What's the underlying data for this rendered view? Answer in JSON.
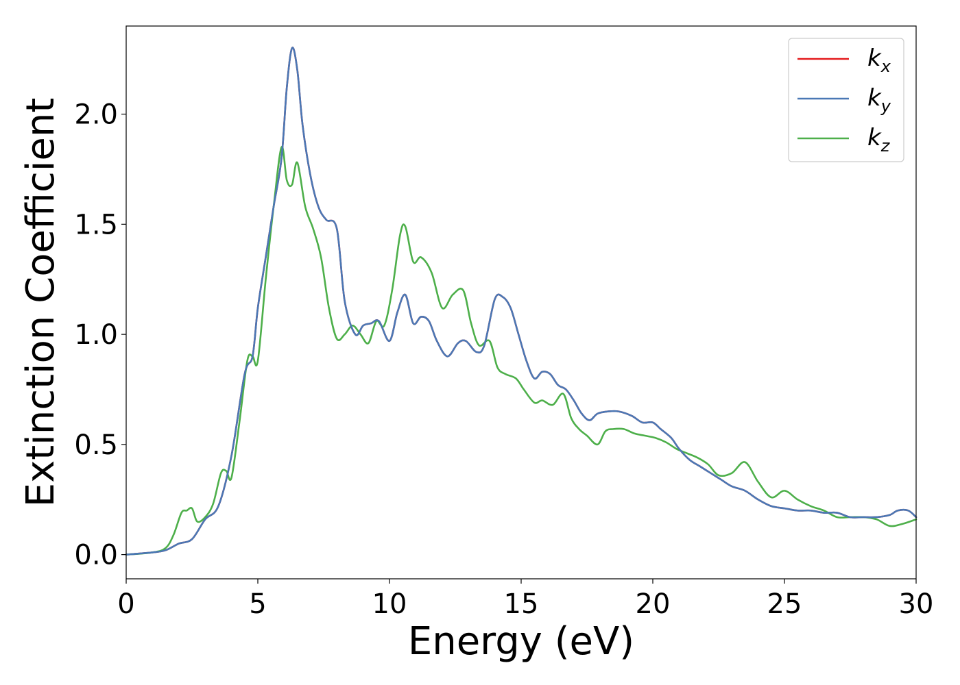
{
  "chart_data": {
    "type": "line",
    "xlabel": "Energy (eV)",
    "ylabel": "Extinction Coefficient",
    "xlim": [
      0,
      30
    ],
    "ylim": [
      -0.11,
      2.4
    ],
    "xticks": [
      0,
      5,
      10,
      15,
      20,
      25,
      30
    ],
    "yticks": [
      0.0,
      0.5,
      1.0,
      1.5,
      2.0
    ],
    "xtick_labels": [
      "0",
      "5",
      "10",
      "15",
      "20",
      "25",
      "30"
    ],
    "ytick_labels": [
      "0.0",
      "0.5",
      "1.0",
      "1.5",
      "2.0"
    ],
    "grid": false,
    "legend_position": "top-right",
    "series": [
      {
        "name": "k_x",
        "legend_base": "k",
        "legend_sub": "x",
        "color": "#e41a1c",
        "x": [
          0,
          1,
          1.5,
          2,
          2.5,
          3,
          3.5,
          4,
          4.5,
          4.8,
          5,
          5.3,
          5.6,
          5.9,
          6.1,
          6.3,
          6.5,
          6.7,
          7,
          7.3,
          7.6,
          8,
          8.3,
          8.7,
          9,
          9.3,
          9.6,
          10,
          10.3,
          10.6,
          10.9,
          11.2,
          11.5,
          11.8,
          12.2,
          12.6,
          12.9,
          13.3,
          13.6,
          14,
          14.3,
          14.6,
          14.9,
          15.2,
          15.5,
          15.8,
          16.1,
          16.4,
          16.7,
          17,
          17.3,
          17.6,
          17.9,
          18.3,
          18.7,
          19.2,
          19.6,
          20,
          20.3,
          20.7,
          21,
          21.4,
          21.8,
          22.2,
          22.6,
          23,
          23.5,
          24,
          24.5,
          25,
          25.5,
          26,
          26.5,
          27,
          27.5,
          28,
          28.5,
          29,
          29.3,
          29.7,
          30
        ],
        "values": [
          0.0,
          0.01,
          0.02,
          0.05,
          0.07,
          0.16,
          0.22,
          0.45,
          0.82,
          0.9,
          1.12,
          1.35,
          1.58,
          1.8,
          2.12,
          2.3,
          2.2,
          1.95,
          1.72,
          1.58,
          1.52,
          1.48,
          1.15,
          1.0,
          1.04,
          1.05,
          1.06,
          0.97,
          1.1,
          1.18,
          1.05,
          1.08,
          1.06,
          0.97,
          0.9,
          0.96,
          0.97,
          0.92,
          0.95,
          1.16,
          1.17,
          1.12,
          1.0,
          0.88,
          0.8,
          0.83,
          0.82,
          0.77,
          0.75,
          0.7,
          0.64,
          0.61,
          0.64,
          0.65,
          0.65,
          0.63,
          0.6,
          0.6,
          0.57,
          0.53,
          0.48,
          0.43,
          0.4,
          0.37,
          0.34,
          0.31,
          0.29,
          0.25,
          0.22,
          0.21,
          0.2,
          0.2,
          0.19,
          0.19,
          0.17,
          0.17,
          0.17,
          0.18,
          0.2,
          0.2,
          0.17
        ]
      },
      {
        "name": "k_y",
        "legend_base": "k",
        "legend_sub": "y",
        "color": "#4a78b5",
        "x": [
          0,
          1,
          1.5,
          2,
          2.5,
          3,
          3.5,
          4,
          4.5,
          4.8,
          5,
          5.3,
          5.6,
          5.9,
          6.1,
          6.3,
          6.5,
          6.7,
          7,
          7.3,
          7.6,
          8,
          8.3,
          8.7,
          9,
          9.3,
          9.6,
          10,
          10.3,
          10.6,
          10.9,
          11.2,
          11.5,
          11.8,
          12.2,
          12.6,
          12.9,
          13.3,
          13.6,
          14,
          14.3,
          14.6,
          14.9,
          15.2,
          15.5,
          15.8,
          16.1,
          16.4,
          16.7,
          17,
          17.3,
          17.6,
          17.9,
          18.3,
          18.7,
          19.2,
          19.6,
          20,
          20.3,
          20.7,
          21,
          21.4,
          21.8,
          22.2,
          22.6,
          23,
          23.5,
          24,
          24.5,
          25,
          25.5,
          26,
          26.5,
          27,
          27.5,
          28,
          28.5,
          29,
          29.3,
          29.7,
          30
        ],
        "values": [
          0.0,
          0.01,
          0.02,
          0.05,
          0.07,
          0.16,
          0.22,
          0.45,
          0.82,
          0.9,
          1.12,
          1.35,
          1.58,
          1.8,
          2.12,
          2.3,
          2.2,
          1.95,
          1.72,
          1.58,
          1.52,
          1.48,
          1.15,
          1.0,
          1.04,
          1.05,
          1.06,
          0.97,
          1.1,
          1.18,
          1.05,
          1.08,
          1.06,
          0.97,
          0.9,
          0.96,
          0.97,
          0.92,
          0.95,
          1.16,
          1.17,
          1.12,
          1.0,
          0.88,
          0.8,
          0.83,
          0.82,
          0.77,
          0.75,
          0.7,
          0.64,
          0.61,
          0.64,
          0.65,
          0.65,
          0.63,
          0.6,
          0.6,
          0.57,
          0.53,
          0.48,
          0.43,
          0.4,
          0.37,
          0.34,
          0.31,
          0.29,
          0.25,
          0.22,
          0.21,
          0.2,
          0.2,
          0.19,
          0.19,
          0.17,
          0.17,
          0.17,
          0.18,
          0.2,
          0.2,
          0.17
        ]
      },
      {
        "name": "k_z",
        "legend_base": "k",
        "legend_sub": "z",
        "color": "#4daf4a",
        "x": [
          0,
          1,
          1.5,
          1.8,
          2.1,
          2.3,
          2.5,
          2.7,
          3,
          3.3,
          3.6,
          3.8,
          4,
          4.3,
          4.6,
          4.8,
          5,
          5.3,
          5.6,
          5.9,
          6.1,
          6.3,
          6.5,
          6.8,
          7.1,
          7.4,
          7.7,
          8,
          8.3,
          8.6,
          8.9,
          9.2,
          9.5,
          9.8,
          10.1,
          10.4,
          10.6,
          10.9,
          11.2,
          11.6,
          12,
          12.4,
          12.8,
          13.1,
          13.4,
          13.8,
          14.1,
          14.4,
          14.8,
          15.1,
          15.5,
          15.8,
          16.2,
          16.6,
          16.9,
          17.2,
          17.5,
          17.9,
          18.2,
          18.5,
          18.9,
          19.3,
          19.7,
          20.1,
          20.5,
          20.9,
          21.3,
          21.7,
          22.1,
          22.5,
          23,
          23.5,
          24,
          24.5,
          25,
          25.5,
          26,
          26.5,
          27,
          27.5,
          28,
          28.5,
          29,
          29.5,
          30
        ],
        "values": [
          0.0,
          0.01,
          0.03,
          0.09,
          0.19,
          0.2,
          0.21,
          0.15,
          0.17,
          0.23,
          0.37,
          0.38,
          0.35,
          0.6,
          0.88,
          0.9,
          0.88,
          1.25,
          1.58,
          1.85,
          1.7,
          1.68,
          1.78,
          1.58,
          1.48,
          1.35,
          1.12,
          0.98,
          1.0,
          1.04,
          1.0,
          0.96,
          1.06,
          1.04,
          1.2,
          1.45,
          1.49,
          1.33,
          1.35,
          1.28,
          1.12,
          1.18,
          1.2,
          1.05,
          0.95,
          0.97,
          0.85,
          0.82,
          0.8,
          0.75,
          0.69,
          0.7,
          0.68,
          0.73,
          0.62,
          0.57,
          0.54,
          0.5,
          0.56,
          0.57,
          0.57,
          0.55,
          0.54,
          0.53,
          0.51,
          0.48,
          0.46,
          0.44,
          0.41,
          0.36,
          0.37,
          0.42,
          0.33,
          0.26,
          0.29,
          0.25,
          0.22,
          0.2,
          0.17,
          0.17,
          0.17,
          0.16,
          0.13,
          0.14,
          0.16
        ]
      }
    ]
  }
}
